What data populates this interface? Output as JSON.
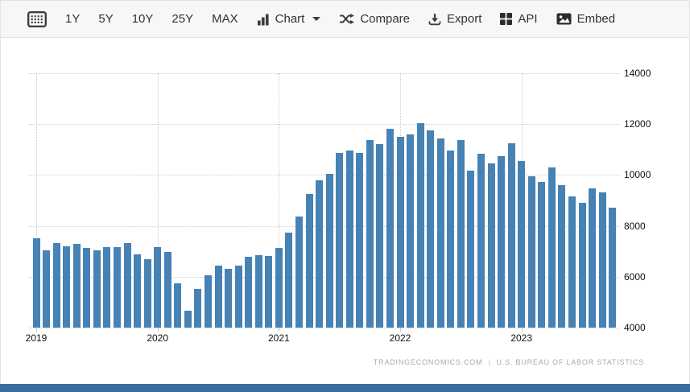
{
  "toolbar": {
    "range_buttons": [
      "1Y",
      "5Y",
      "10Y",
      "25Y",
      "MAX"
    ],
    "chart_label": "Chart",
    "compare_label": "Compare",
    "export_label": "Export",
    "api_label": "API",
    "embed_label": "Embed"
  },
  "chart_data": {
    "type": "bar",
    "title": "",
    "x": [
      "2019-01",
      "2019-02",
      "2019-03",
      "2019-04",
      "2019-05",
      "2019-06",
      "2019-07",
      "2019-08",
      "2019-09",
      "2019-10",
      "2019-11",
      "2019-12",
      "2020-01",
      "2020-02",
      "2020-03",
      "2020-04",
      "2020-05",
      "2020-06",
      "2020-07",
      "2020-08",
      "2020-09",
      "2020-10",
      "2020-11",
      "2020-12",
      "2021-01",
      "2021-02",
      "2021-03",
      "2021-04",
      "2021-05",
      "2021-06",
      "2021-07",
      "2021-08",
      "2021-09",
      "2021-10",
      "2021-11",
      "2021-12",
      "2022-01",
      "2022-02",
      "2022-03",
      "2022-04",
      "2022-05",
      "2022-06",
      "2022-07",
      "2022-08",
      "2022-09",
      "2022-10",
      "2022-11",
      "2022-12",
      "2023-01",
      "2023-02",
      "2023-03",
      "2023-04",
      "2023-05",
      "2023-06",
      "2023-07",
      "2023-08",
      "2023-09",
      "2023-10"
    ],
    "values": [
      7520,
      7050,
      7310,
      7210,
      7290,
      7130,
      7030,
      7170,
      7170,
      7320,
      6870,
      6680,
      7170,
      6980,
      5750,
      4650,
      5510,
      6060,
      6450,
      6300,
      6450,
      6780,
      6850,
      6830,
      7140,
      7740,
      8370,
      9240,
      9800,
      10030,
      10860,
      10960,
      10860,
      11360,
      11210,
      11810,
      11490,
      11580,
      12040,
      11750,
      11440,
      10970,
      11370,
      10180,
      10840,
      10470,
      10730,
      11250,
      10550,
      9960,
      9730,
      10300,
      9610,
      9160,
      8910,
      9480,
      9320,
      8730
    ],
    "year_ticks": [
      "2019",
      "2020",
      "2021",
      "2022",
      "2023"
    ],
    "y_ticks": [
      4000,
      6000,
      8000,
      10000,
      12000,
      14000
    ],
    "ylim": [
      4000,
      14000
    ],
    "grid": "dotted",
    "legend": "none",
    "bar_color": "#4682b4"
  },
  "attribution": {
    "left": "TRADINGECONOMICS.COM",
    "separator": "|",
    "right": "U.S.  BUREAU  OF  LABOR  STATISTICS"
  },
  "footer": {
    "bar_color": "#3a6d9f"
  }
}
